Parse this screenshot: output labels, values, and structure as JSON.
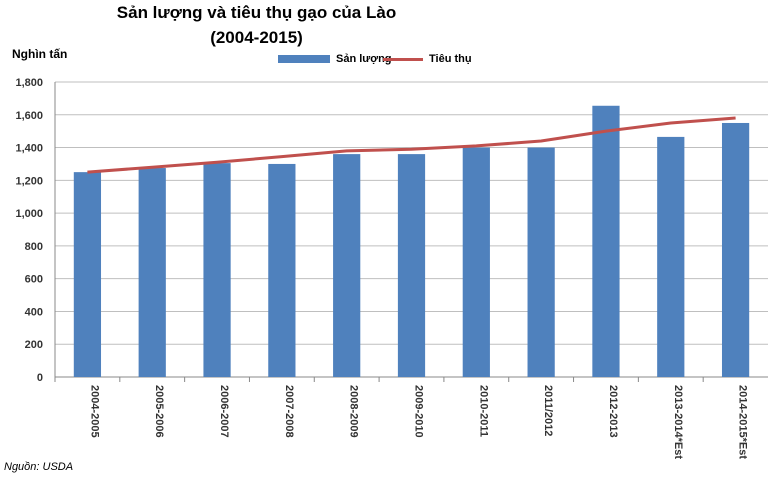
{
  "chart_data": {
    "type": "bar",
    "title": "Sản lượng và tiêu thụ gạo của Lào",
    "subtitle": "(2004-2015)",
    "ylabel": "Nghìn tấn",
    "xlabel": "",
    "ylim": [
      0,
      1800
    ],
    "yticks": [
      "0",
      "200",
      "400",
      "600",
      "800",
      "1,000",
      "1,200",
      "1,400",
      "1,600",
      "1,800"
    ],
    "grid": true,
    "legend_position": "top",
    "categories": [
      "2004-2005",
      "2005-2006",
      "2006-2007",
      "2007-2008",
      "2008-2009",
      "2009-2010",
      "2010-2011",
      "2011/2012",
      "2012-2013",
      "2013-2014*Est",
      "2014-2015*Est"
    ],
    "series": [
      {
        "name": "Sản lượng",
        "type": "bar",
        "color": "#4f81bd",
        "values": [
          1250,
          1275,
          1305,
          1300,
          1360,
          1360,
          1400,
          1400,
          1655,
          1465,
          1550
        ]
      },
      {
        "name": "Tiêu thụ",
        "type": "line",
        "color": "#c0504d",
        "values": [
          1250,
          1280,
          1310,
          1345,
          1380,
          1390,
          1410,
          1440,
          1500,
          1550,
          1580
        ]
      }
    ],
    "source": "Nguồn: USDA"
  }
}
